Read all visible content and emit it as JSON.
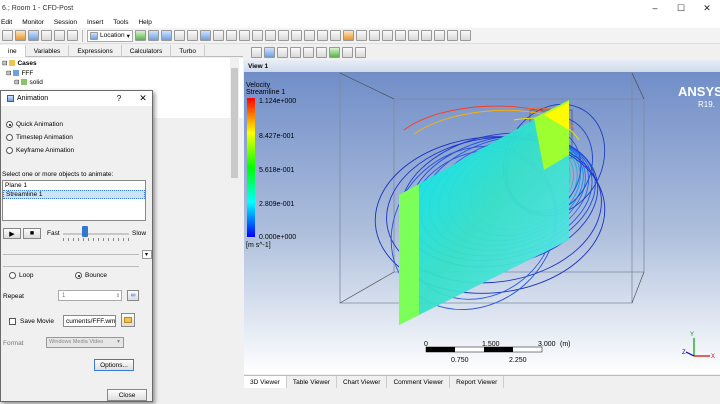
{
  "window": {
    "title": "6.; Room 1 - CFD-Post"
  },
  "menu": [
    "Edit",
    "Monitor",
    "Session",
    "Insert",
    "Tools",
    "Help"
  ],
  "toolbar": {
    "location_label": "Location"
  },
  "left_tabs": [
    {
      "label": "ine",
      "active": true
    },
    {
      "label": "Variables",
      "active": false
    },
    {
      "label": "Expressions",
      "active": false
    },
    {
      "label": "Calculators",
      "active": false
    },
    {
      "label": "Turbo",
      "active": false
    }
  ],
  "tree": {
    "cases": "Cases",
    "fff": "FFF",
    "solid": "solid"
  },
  "dialog": {
    "title": "Animation",
    "help": "?",
    "close": "✕",
    "modes": [
      {
        "label": "Quick Animation",
        "selected": true
      },
      {
        "label": "Timestep Animation",
        "selected": false
      },
      {
        "label": "Keyframe Animation",
        "selected": false
      }
    ],
    "select_prompt": "Select one or more objects to animate:",
    "objects": [
      {
        "label": "Plane 1",
        "selected": false
      },
      {
        "label": "Streamline 1",
        "selected": true
      }
    ],
    "speed_fast": "Fast",
    "speed_slow": "Slow",
    "speed_value": 0.33,
    "loop_label": "Loop",
    "bounce_label": "Bounce",
    "loop_selected": false,
    "bounce_selected": true,
    "repeat_label": "Repeat",
    "repeat_value": "1",
    "save_movie_label": "Save Movie",
    "save_movie_checked": false,
    "movie_path": "cuments/FFF.wmv",
    "format_label": "Format",
    "format_value": "Windows Media Video",
    "options_button": "Options...",
    "close_button": "Close"
  },
  "viewport": {
    "title": "View 1",
    "legend": {
      "title": "Velocity",
      "subtitle": "Streamline 1",
      "ticks": [
        "1.124e+000",
        "8.427e-001",
        "5.618e-001",
        "2.809e-001",
        "0.000e+000"
      ],
      "unit": "[m s^-1]"
    },
    "brand": "ANSYS",
    "version": "R19.",
    "scale": {
      "top_labels": [
        "0",
        "1.500",
        "3.000"
      ],
      "bottom_labels": [
        "0.750",
        "2.250"
      ],
      "unit": "(m)"
    },
    "axis_labels": {
      "y": "Y",
      "z": "Z",
      "x": "X"
    }
  },
  "bottom_tabs": [
    {
      "label": "3D Viewer",
      "active": true
    },
    {
      "label": "Table Viewer",
      "active": false
    },
    {
      "label": "Chart Viewer",
      "active": false
    },
    {
      "label": "Comment Viewer",
      "active": false
    },
    {
      "label": "Report Viewer",
      "active": false
    }
  ],
  "colors": {
    "viewport_top": "#6c8ac7",
    "accent_blue": "#3477d1",
    "plane_cyan": "#2bd3e6"
  }
}
